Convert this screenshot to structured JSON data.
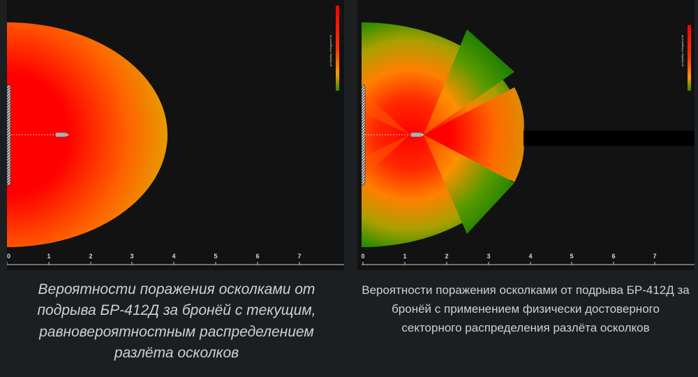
{
  "colors": {
    "background": "#1b1f22",
    "panel": "#121212",
    "high_probability": "#ff0000",
    "mid_probability": "#ff7a00",
    "low_probability": "#2a8c00",
    "caption_text": "#d0d0d0"
  },
  "left_panel": {
    "legend_label": "probability of fragment hit",
    "axis_ticks": [
      "0",
      "1",
      "2",
      "3",
      "4",
      "5",
      "6",
      "7"
    ],
    "caption": "Вероятности поражения осколками от подрыва БР-412Д за бронёй с текущим, равновероятностным распределением разлёта осколков"
  },
  "right_panel": {
    "legend_label": "probability of fragment hit",
    "axis_ticks": [
      "0",
      "1",
      "2",
      "3",
      "4",
      "5",
      "6",
      "7"
    ],
    "caption": "Вероятности поражения осколками от подрыва БР-412Д за бронёй с применением физически достоверного секторного распределения разлёта осколков"
  },
  "icons": {
    "armor_plate": "armor-plate-icon",
    "projectile": "projectile-icon"
  }
}
